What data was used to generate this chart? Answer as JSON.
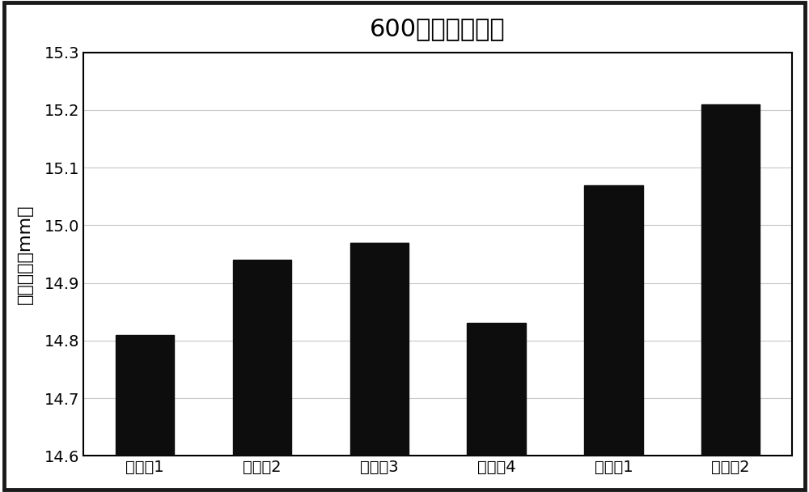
{
  "title": "600圈循环后厘度",
  "categories": [
    "实施例1",
    "实施例2",
    "实施例3",
    "实施例4",
    "对比例1",
    "对比例2"
  ],
  "values": [
    14.81,
    14.94,
    14.97,
    14.83,
    15.07,
    15.21
  ],
  "bar_color": "#0d0d0d",
  "ylabel": "电芯厘度（mm）",
  "ylim": [
    14.6,
    15.3
  ],
  "yticks": [
    14.6,
    14.7,
    14.8,
    14.9,
    15.0,
    15.1,
    15.2,
    15.3
  ],
  "title_fontsize": 22,
  "label_fontsize": 16,
  "tick_fontsize": 14,
  "background_color": "#ffffff",
  "bar_width": 0.5,
  "grid_color": "#c8c8c8",
  "outer_border_color": "#1a1a1a",
  "outer_border_linewidth": 3.5,
  "plot_border_linewidth": 1.5
}
